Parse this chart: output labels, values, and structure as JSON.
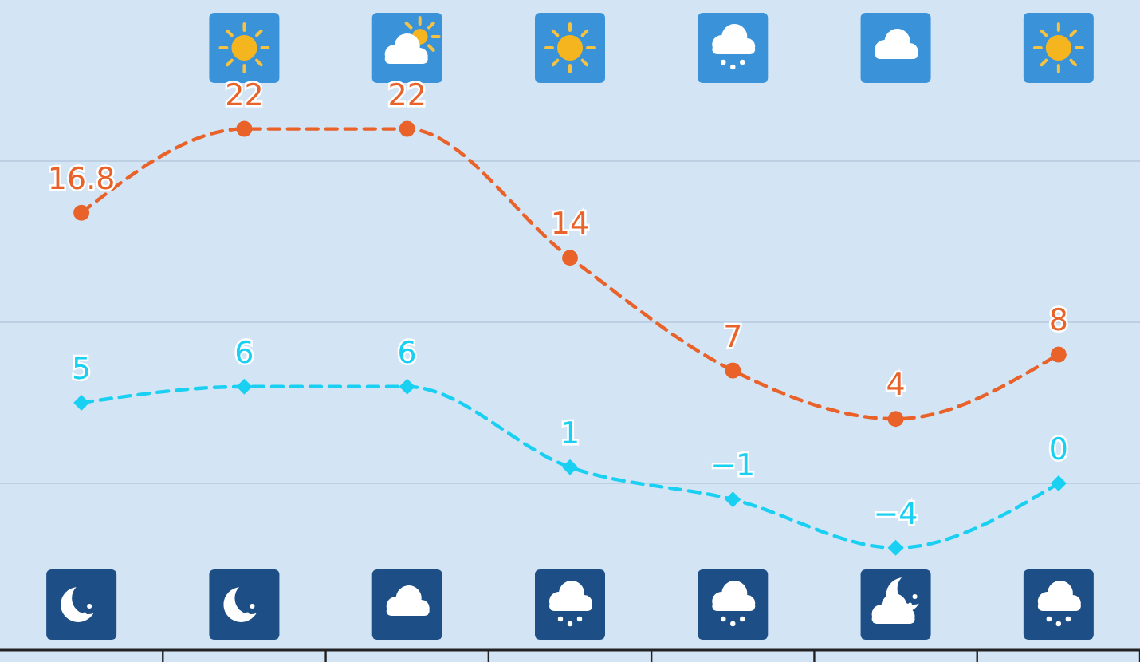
{
  "chart_data": {
    "type": "line",
    "categories": [
      null,
      null,
      null,
      null,
      null,
      null,
      null
    ],
    "series": [
      {
        "color": "#e8622a",
        "values": [
          16.8,
          22,
          22,
          14,
          7,
          4,
          8
        ],
        "marker": "circle"
      },
      {
        "color": "#1ad0f2",
        "values": [
          5,
          6,
          6,
          1,
          -1,
          -4,
          0
        ],
        "marker": "diamond"
      }
    ],
    "ylim": [
      -10,
      30
    ],
    "yticks": [
      {
        "value": 0,
        "label": null
      },
      {
        "value": 10,
        "label": null
      },
      {
        "value": 20,
        "label": null
      }
    ],
    "grid": "y",
    "line_style": "dashed",
    "data_labels": true
  }
}
